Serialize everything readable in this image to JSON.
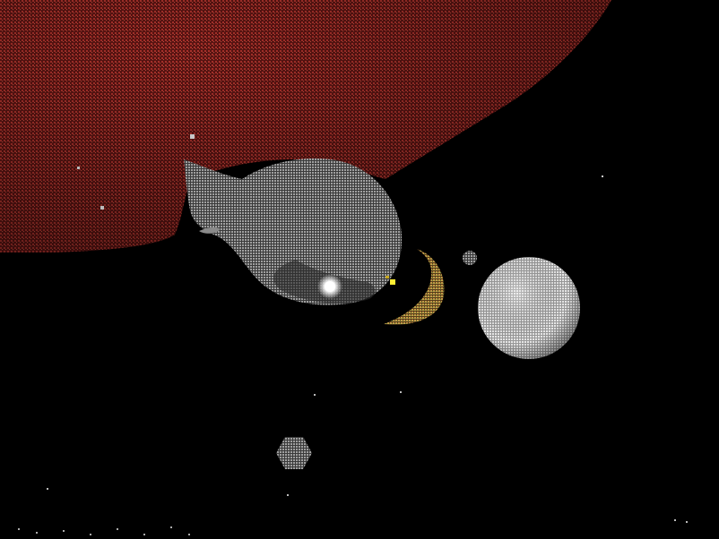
{
  "scene": {
    "background_color": "#000000",
    "colors": {
      "planet_red": "#8a1f1c",
      "planet_red_light": "#b03a30",
      "comet_gray": "#9a9a9a",
      "comet_glow": "#ffffff",
      "crescent_gold": "#b28a3a",
      "crescent_shadow": "#5a3c1a",
      "moon_light": "#e6e6e6",
      "moon_dark": "#8c8c8c",
      "small_moon": "#8a8a8a",
      "spark_yellow": "#ffee33",
      "star": "#cfcfcf"
    },
    "objects": [
      {
        "name": "red-planet",
        "kind": "planet"
      },
      {
        "name": "gray-comet",
        "kind": "comet"
      },
      {
        "name": "crescent-moon",
        "kind": "moon"
      },
      {
        "name": "white-moon",
        "kind": "moon"
      },
      {
        "name": "small-moon",
        "kind": "moon"
      },
      {
        "name": "tiny-moon",
        "kind": "moon"
      },
      {
        "name": "yellow-spark",
        "kind": "spark"
      }
    ]
  }
}
